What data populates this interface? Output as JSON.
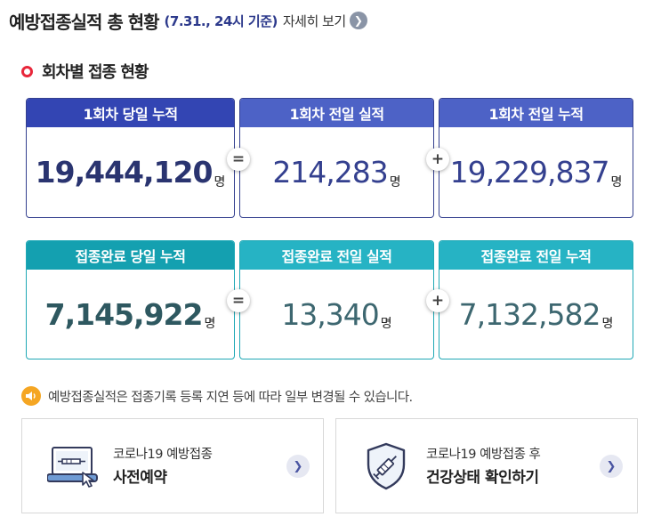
{
  "header": {
    "title": "예방접종실적 총 현황",
    "basis": "(7.31., 24시 기준)",
    "more_label": "자세히 보기"
  },
  "section": {
    "title": "회차별 접종 현황"
  },
  "first_dose": {
    "today_total": {
      "label": "1회차 당일 누적",
      "value": "19,444,120",
      "unit": "명"
    },
    "prev_day_result": {
      "label": "1회차 전일 실적",
      "value": "214,283",
      "unit": "명"
    },
    "prev_day_total": {
      "label": "1회차 전일 누적",
      "value": "19,229,837",
      "unit": "명"
    }
  },
  "completed": {
    "today_total": {
      "label": "접종완료 당일 누적",
      "value": "7,145,922",
      "unit": "명"
    },
    "prev_day_result": {
      "label": "접종완료 전일 실적",
      "value": "13,340",
      "unit": "명"
    },
    "prev_day_total": {
      "label": "접종완료 전일 누적",
      "value": "7,132,582",
      "unit": "명"
    }
  },
  "operators": {
    "equals": "=",
    "plus": "+"
  },
  "notice": {
    "text": "예방접종실적은 접종기록 등록 지연 등에 따라 일부 변경될 수 있습니다."
  },
  "links": [
    {
      "sub": "코로나19 예방접종",
      "main": "사전예약",
      "icon": "laptop-syringe-icon"
    },
    {
      "sub": "코로나19 예방접종 후",
      "main": "건강상태 확인하기",
      "icon": "shield-syringe-icon"
    }
  ],
  "colors": {
    "navy": "#3345b3",
    "teal": "#14a0b0",
    "accent_red": "#e8263a",
    "notice_orange": "#f5a623"
  }
}
